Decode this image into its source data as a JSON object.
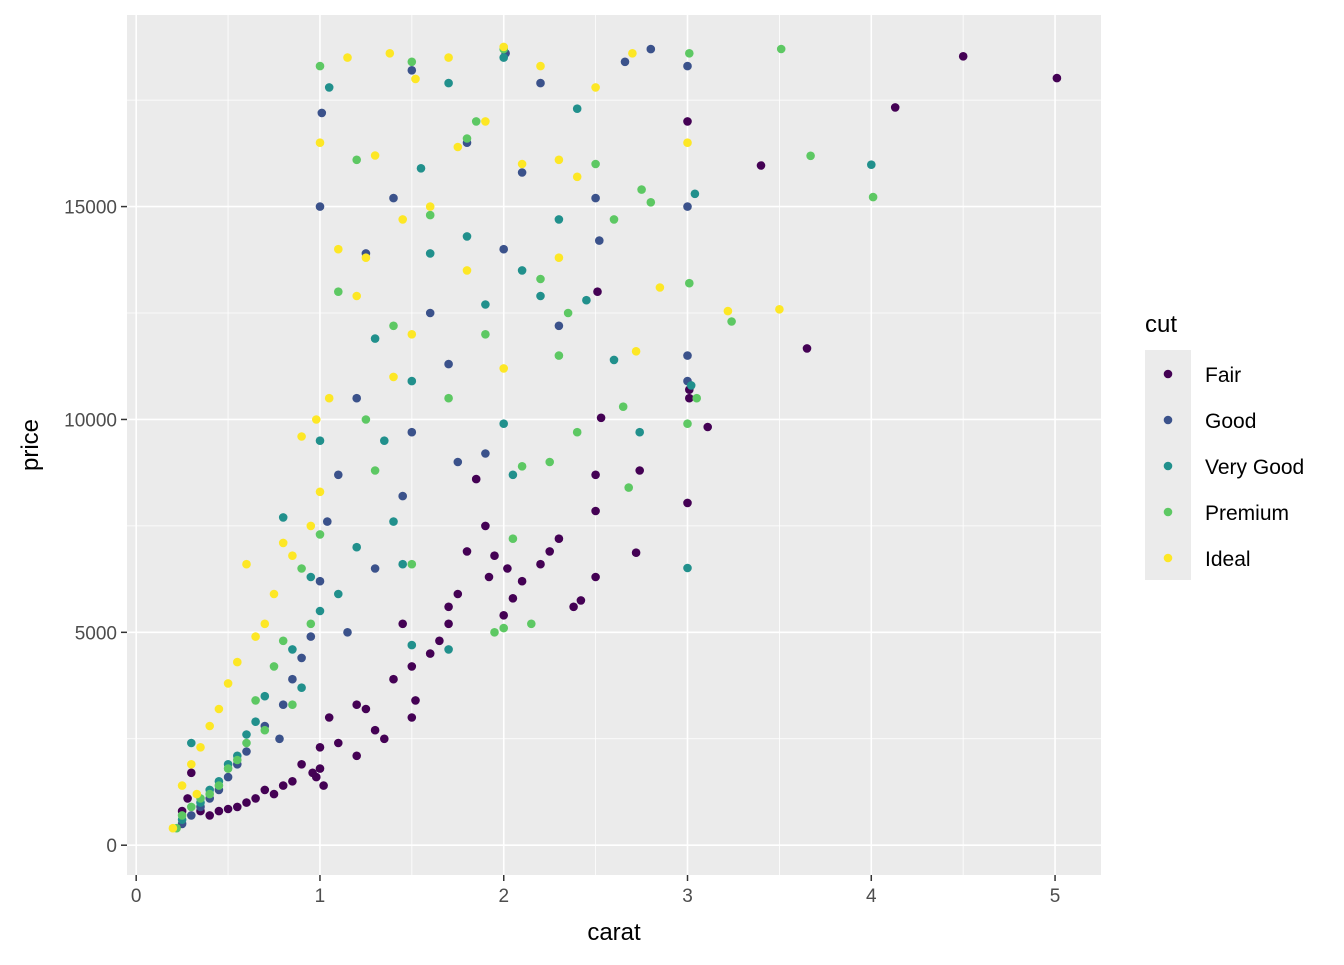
{
  "chart_data": {
    "type": "scatter",
    "title": "",
    "xlabel": "carat",
    "ylabel": "price",
    "xlim": [
      -0.05,
      5.25
    ],
    "ylim": [
      -700,
      19500
    ],
    "x_ticks": [
      0,
      1,
      2,
      3,
      4,
      5
    ],
    "y_ticks": [
      0,
      5000,
      10000,
      15000
    ],
    "x_tick_labels": [
      "0",
      "1",
      "2",
      "3",
      "4",
      "5"
    ],
    "y_tick_labels": [
      "0",
      "5000",
      "10000",
      "15000"
    ],
    "grid": true,
    "legend": {
      "title": "cut",
      "position": "right"
    },
    "series": [
      {
        "name": "Fair",
        "color": "#440154",
        "points": [
          [
            5.01,
            18018
          ],
          [
            4.5,
            18531
          ],
          [
            4.13,
            17329
          ],
          [
            3.4,
            15964
          ],
          [
            3.65,
            11668
          ],
          [
            3.11,
            9823
          ],
          [
            3.01,
            10700
          ],
          [
            3.01,
            10500
          ],
          [
            3.0,
            8040
          ],
          [
            3.0,
            17000
          ],
          [
            2.72,
            6870
          ],
          [
            2.74,
            8800
          ],
          [
            2.5,
            6300
          ],
          [
            2.5,
            7850
          ],
          [
            2.5,
            8700
          ],
          [
            2.53,
            10040
          ],
          [
            2.51,
            13000
          ],
          [
            2.42,
            5750
          ],
          [
            2.38,
            5600
          ],
          [
            2.3,
            7200
          ],
          [
            2.25,
            6900
          ],
          [
            2.2,
            6600
          ],
          [
            2.1,
            6200
          ],
          [
            2.05,
            5800
          ],
          [
            2.0,
            5400
          ],
          [
            1.95,
            6800
          ],
          [
            1.9,
            7500
          ],
          [
            1.85,
            8600
          ],
          [
            1.8,
            6900
          ],
          [
            1.75,
            5900
          ],
          [
            1.7,
            5200
          ],
          [
            1.65,
            4800
          ],
          [
            1.6,
            4500
          ],
          [
            1.52,
            3400
          ],
          [
            1.5,
            3000
          ],
          [
            1.5,
            4200
          ],
          [
            1.45,
            5200
          ],
          [
            1.4,
            3900
          ],
          [
            1.35,
            2500
          ],
          [
            1.3,
            2700
          ],
          [
            1.25,
            3200
          ],
          [
            1.2,
            2100
          ],
          [
            1.1,
            2400
          ],
          [
            1.05,
            3000
          ],
          [
            1.0,
            1800
          ],
          [
            1.0,
            2300
          ],
          [
            0.98,
            1600
          ],
          [
            0.96,
            1700
          ],
          [
            0.9,
            1900
          ],
          [
            0.85,
            1500
          ],
          [
            0.8,
            1400
          ],
          [
            0.75,
            1200
          ],
          [
            0.7,
            1300
          ],
          [
            0.65,
            1100
          ],
          [
            0.6,
            1000
          ],
          [
            0.55,
            900
          ],
          [
            0.5,
            850
          ],
          [
            0.45,
            800
          ],
          [
            0.4,
            700
          ],
          [
            0.35,
            800
          ],
          [
            0.3,
            1700
          ],
          [
            0.28,
            1100
          ],
          [
            0.25,
            800
          ],
          [
            1.02,
            1400
          ],
          [
            1.2,
            3300
          ],
          [
            1.7,
            5600
          ],
          [
            1.92,
            6300
          ],
          [
            2.02,
            6500
          ]
        ]
      },
      {
        "name": "Good",
        "color": "#3B528B",
        "points": [
          [
            2.8,
            18700
          ],
          [
            2.66,
            18400
          ],
          [
            3.0,
            18300
          ],
          [
            3.0,
            15000
          ],
          [
            3.0,
            11500
          ],
          [
            3.0,
            10900
          ],
          [
            2.5,
            15200
          ],
          [
            2.52,
            14200
          ],
          [
            2.3,
            12200
          ],
          [
            2.2,
            17900
          ],
          [
            2.1,
            15800
          ],
          [
            2.01,
            18600
          ],
          [
            2.0,
            14000
          ],
          [
            1.8,
            16500
          ],
          [
            1.7,
            11300
          ],
          [
            1.6,
            12500
          ],
          [
            1.5,
            18200
          ],
          [
            1.5,
            9700
          ],
          [
            1.4,
            15200
          ],
          [
            1.25,
            13900
          ],
          [
            1.2,
            10500
          ],
          [
            1.1,
            8700
          ],
          [
            1.04,
            7600
          ],
          [
            1.0,
            6200
          ],
          [
            1.0,
            15000
          ],
          [
            1.01,
            17200
          ],
          [
            0.95,
            4900
          ],
          [
            0.9,
            4400
          ],
          [
            0.85,
            3900
          ],
          [
            0.8,
            3300
          ],
          [
            0.7,
            2800
          ],
          [
            0.6,
            2200
          ],
          [
            0.55,
            1900
          ],
          [
            0.5,
            1600
          ],
          [
            0.45,
            1300
          ],
          [
            0.4,
            1100
          ],
          [
            0.35,
            900
          ],
          [
            0.3,
            700
          ],
          [
            0.25,
            500
          ],
          [
            0.78,
            2500
          ],
          [
            1.15,
            5000
          ],
          [
            1.3,
            6500
          ],
          [
            1.45,
            8200
          ],
          [
            1.75,
            9000
          ],
          [
            1.9,
            9200
          ]
        ]
      },
      {
        "name": "Very Good",
        "color": "#21908C",
        "points": [
          [
            4.0,
            15984
          ],
          [
            3.04,
            15300
          ],
          [
            3.0,
            6512
          ],
          [
            3.02,
            10800
          ],
          [
            2.74,
            9700
          ],
          [
            2.6,
            11400
          ],
          [
            2.45,
            12800
          ],
          [
            2.4,
            17300
          ],
          [
            2.3,
            14700
          ],
          [
            2.2,
            12900
          ],
          [
            2.1,
            13500
          ],
          [
            2.0,
            18500
          ],
          [
            2.0,
            9900
          ],
          [
            1.9,
            12700
          ],
          [
            1.8,
            14300
          ],
          [
            1.7,
            17900
          ],
          [
            1.6,
            13900
          ],
          [
            1.5,
            10900
          ],
          [
            1.5,
            4700
          ],
          [
            1.45,
            6600
          ],
          [
            1.4,
            7600
          ],
          [
            1.3,
            11900
          ],
          [
            1.2,
            7000
          ],
          [
            1.1,
            5900
          ],
          [
            1.05,
            17800
          ],
          [
            1.0,
            9500
          ],
          [
            1.0,
            5500
          ],
          [
            0.95,
            6300
          ],
          [
            0.9,
            3700
          ],
          [
            0.85,
            4600
          ],
          [
            0.8,
            7700
          ],
          [
            0.7,
            3500
          ],
          [
            0.65,
            2900
          ],
          [
            0.6,
            2600
          ],
          [
            0.55,
            2100
          ],
          [
            0.5,
            1900
          ],
          [
            0.45,
            1500
          ],
          [
            0.4,
            1300
          ],
          [
            0.35,
            1000
          ],
          [
            0.3,
            2400
          ],
          [
            0.25,
            600
          ],
          [
            1.7,
            4600
          ],
          [
            2.05,
            8700
          ],
          [
            1.35,
            9500
          ],
          [
            1.55,
            15900
          ]
        ]
      },
      {
        "name": "Premium",
        "color": "#5DC863",
        "points": [
          [
            3.51,
            18701
          ],
          [
            3.67,
            16193
          ],
          [
            4.01,
            15223
          ],
          [
            3.24,
            12300
          ],
          [
            3.05,
            10500
          ],
          [
            3.01,
            18600
          ],
          [
            3.01,
            13200
          ],
          [
            3.0,
            9900
          ],
          [
            2.65,
            10300
          ],
          [
            2.75,
            15400
          ],
          [
            2.8,
            15100
          ],
          [
            2.68,
            8400
          ],
          [
            2.6,
            14700
          ],
          [
            2.5,
            16000
          ],
          [
            2.4,
            9700
          ],
          [
            2.3,
            11500
          ],
          [
            2.2,
            13300
          ],
          [
            2.1,
            8900
          ],
          [
            2.05,
            7200
          ],
          [
            2.0,
            18700
          ],
          [
            2.0,
            5100
          ],
          [
            1.95,
            5000
          ],
          [
            1.9,
            12000
          ],
          [
            1.8,
            16600
          ],
          [
            1.7,
            10500
          ],
          [
            1.6,
            14800
          ],
          [
            1.5,
            18400
          ],
          [
            1.5,
            6600
          ],
          [
            1.4,
            12200
          ],
          [
            1.3,
            8800
          ],
          [
            1.2,
            16100
          ],
          [
            1.1,
            13000
          ],
          [
            1.0,
            7300
          ],
          [
            1.0,
            18300
          ],
          [
            0.95,
            5200
          ],
          [
            0.9,
            6500
          ],
          [
            0.85,
            3300
          ],
          [
            0.8,
            4800
          ],
          [
            0.75,
            4200
          ],
          [
            0.7,
            2700
          ],
          [
            0.65,
            3400
          ],
          [
            0.6,
            2400
          ],
          [
            0.55,
            2000
          ],
          [
            0.5,
            1800
          ],
          [
            0.45,
            1400
          ],
          [
            0.4,
            1200
          ],
          [
            0.35,
            1100
          ],
          [
            0.3,
            900
          ],
          [
            0.25,
            700
          ],
          [
            0.22,
            400
          ],
          [
            2.25,
            9000
          ],
          [
            2.15,
            5200
          ],
          [
            1.85,
            17000
          ],
          [
            1.25,
            10000
          ],
          [
            2.35,
            12500
          ]
        ]
      },
      {
        "name": "Ideal",
        "color": "#FDE725",
        "points": [
          [
            3.5,
            12587
          ],
          [
            3.22,
            12545
          ],
          [
            3.0,
            16500
          ],
          [
            2.85,
            13100
          ],
          [
            2.72,
            11600
          ],
          [
            2.7,
            18600
          ],
          [
            2.5,
            17800
          ],
          [
            2.4,
            15700
          ],
          [
            2.3,
            13800
          ],
          [
            2.2,
            18300
          ],
          [
            2.1,
            16000
          ],
          [
            2.0,
            18750
          ],
          [
            2.0,
            11200
          ],
          [
            1.9,
            17000
          ],
          [
            1.8,
            13500
          ],
          [
            1.7,
            18500
          ],
          [
            1.6,
            15000
          ],
          [
            1.52,
            18000
          ],
          [
            1.5,
            12000
          ],
          [
            1.45,
            14700
          ],
          [
            1.4,
            11000
          ],
          [
            1.3,
            16200
          ],
          [
            1.2,
            12900
          ],
          [
            1.1,
            14000
          ],
          [
            1.05,
            10500
          ],
          [
            1.0,
            16500
          ],
          [
            1.0,
            8300
          ],
          [
            0.95,
            7500
          ],
          [
            0.9,
            9600
          ],
          [
            0.85,
            6800
          ],
          [
            0.8,
            7100
          ],
          [
            0.75,
            5900
          ],
          [
            0.7,
            5200
          ],
          [
            0.65,
            4900
          ],
          [
            0.6,
            6600
          ],
          [
            0.55,
            4300
          ],
          [
            0.5,
            3800
          ],
          [
            0.45,
            3200
          ],
          [
            0.4,
            2800
          ],
          [
            0.35,
            2300
          ],
          [
            0.3,
            1900
          ],
          [
            0.25,
            1400
          ],
          [
            0.2,
            400
          ],
          [
            0.33,
            1200
          ],
          [
            1.38,
            18600
          ],
          [
            1.15,
            18500
          ],
          [
            2.3,
            16100
          ],
          [
            1.75,
            16400
          ],
          [
            1.25,
            13800
          ],
          [
            0.98,
            10000
          ]
        ]
      }
    ]
  }
}
